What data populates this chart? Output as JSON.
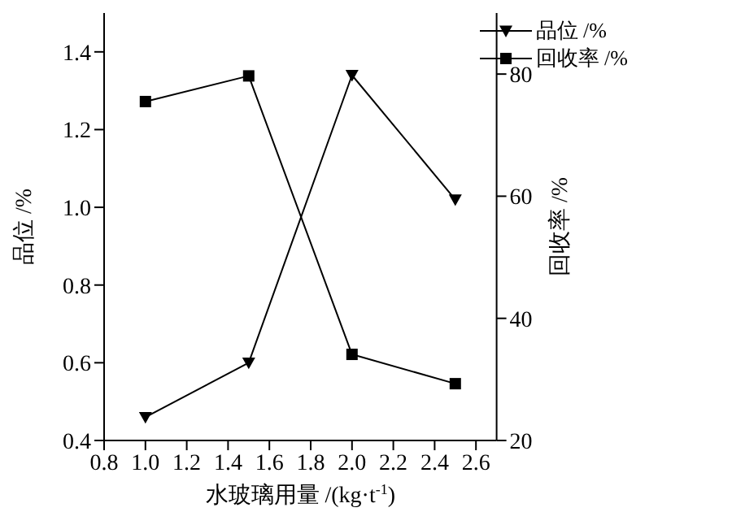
{
  "chart_data": {
    "type": "line",
    "xlabel": "水玻璃用量 /(kg·t$^{-1}$)",
    "ylabel": "品位 /%",
    "y2label": "回收率 /%",
    "x": [
      1.0,
      1.5,
      2.0,
      2.5
    ],
    "series": [
      {
        "name": "品位 /%",
        "color": "#000000",
        "marker": "triangle",
        "values": [
          0.46,
          0.6,
          1.34,
          1.02
        ]
      },
      {
        "name": "回收率 /%",
        "color": "#000000",
        "marker": "square",
        "axis": "y2",
        "values": [
          75.5,
          79.7,
          34.1,
          29.3
        ]
      }
    ],
    "xlim": [
      0.8,
      2.7
    ],
    "xticks": [
      0.8,
      {
        "value": 1,
        "label": "1.0"
      },
      1.2,
      1.4,
      1.6,
      1.8,
      {
        "value": 2,
        "label": "2.0"
      },
      2.2,
      2.4,
      2.6
    ],
    "ylim": [
      0.4,
      1.5
    ],
    "yticks": [
      0.4,
      0.6,
      0.8,
      {
        "value": 1,
        "label": "1.0"
      },
      1.2,
      1.4
    ],
    "y2lim": [
      20,
      90
    ],
    "y2ticks": [
      20,
      40,
      60,
      80
    ],
    "legend": "top right",
    "grid": false
  }
}
